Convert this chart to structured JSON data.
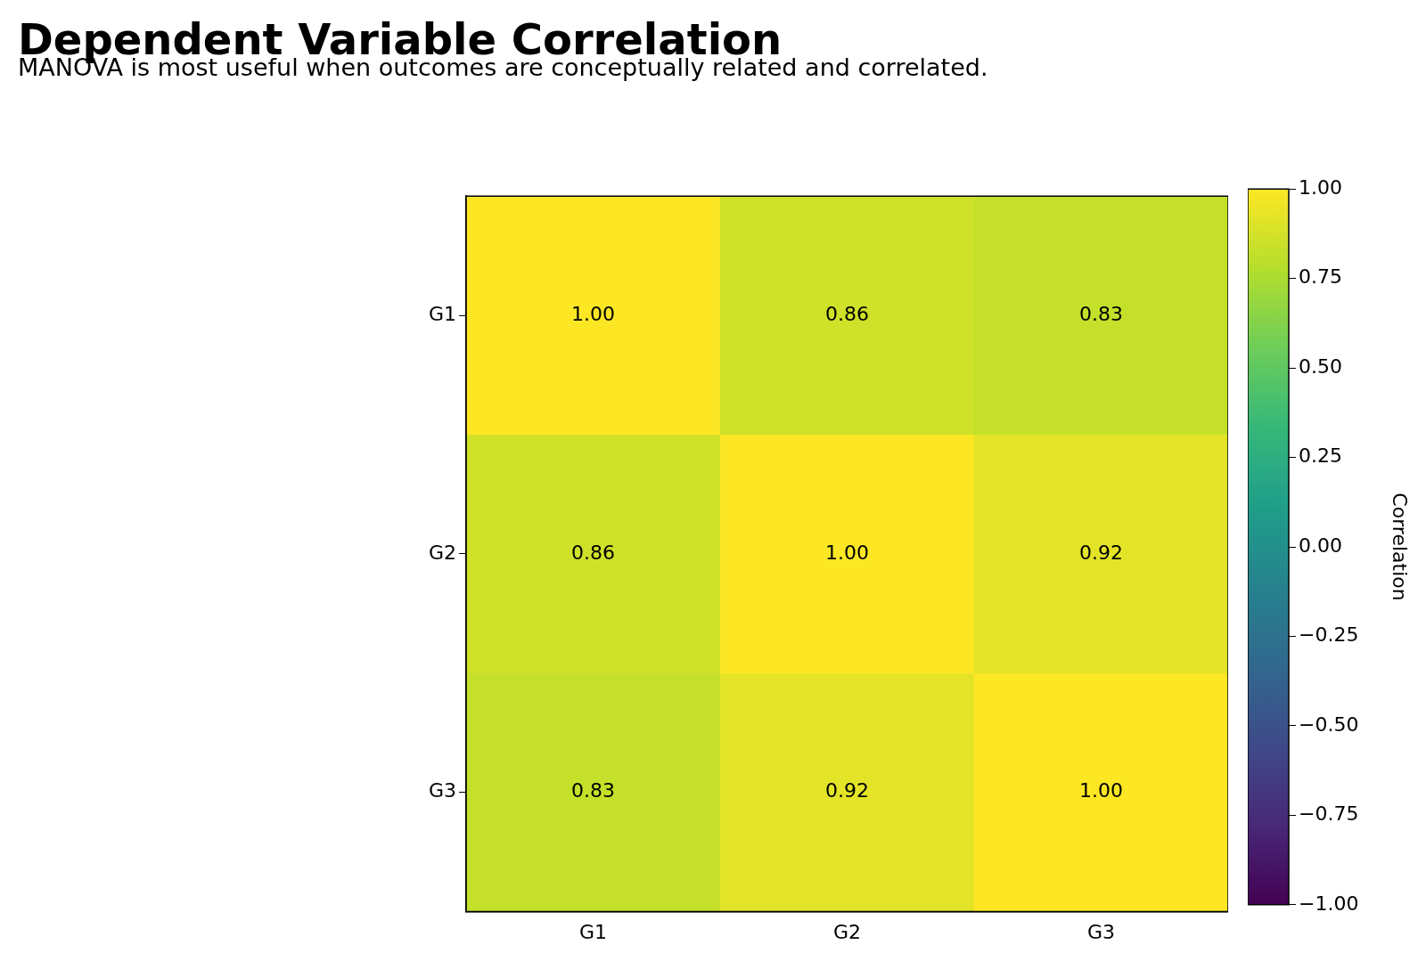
{
  "chart_data": {
    "type": "heatmap",
    "title": "Dependent Variable Correlation",
    "subtitle": "MANOVA is most useful when outcomes are conceptually related and correlated.",
    "categories": [
      "G1",
      "G2",
      "G3"
    ],
    "y_categories": [
      "G1",
      "G2",
      "G3"
    ],
    "cells": [
      [
        1.0,
        0.86,
        0.83
      ],
      [
        0.86,
        1.0,
        0.92
      ],
      [
        0.83,
        0.92,
        1.0
      ]
    ],
    "cell_labels": [
      [
        "1.00",
        "0.86",
        "0.83"
      ],
      [
        "0.86",
        "1.00",
        "0.92"
      ],
      [
        "0.83",
        "0.92",
        "1.00"
      ]
    ],
    "clim": [
      -1,
      1
    ],
    "clabel": "Correlation",
    "cticks": [
      {
        "value": -1,
        "label": "−1.00"
      },
      {
        "value": -0.75,
        "label": "−0.75"
      },
      {
        "value": -0.5,
        "label": "−0.50"
      },
      {
        "value": -0.25,
        "label": "−0.25"
      },
      {
        "value": 0,
        "label": "0.00"
      },
      {
        "value": 0.25,
        "label": "0.25"
      },
      {
        "value": 0.5,
        "label": "0.50"
      },
      {
        "value": 0.75,
        "label": "0.75"
      },
      {
        "value": 1,
        "label": "1.00"
      }
    ]
  }
}
